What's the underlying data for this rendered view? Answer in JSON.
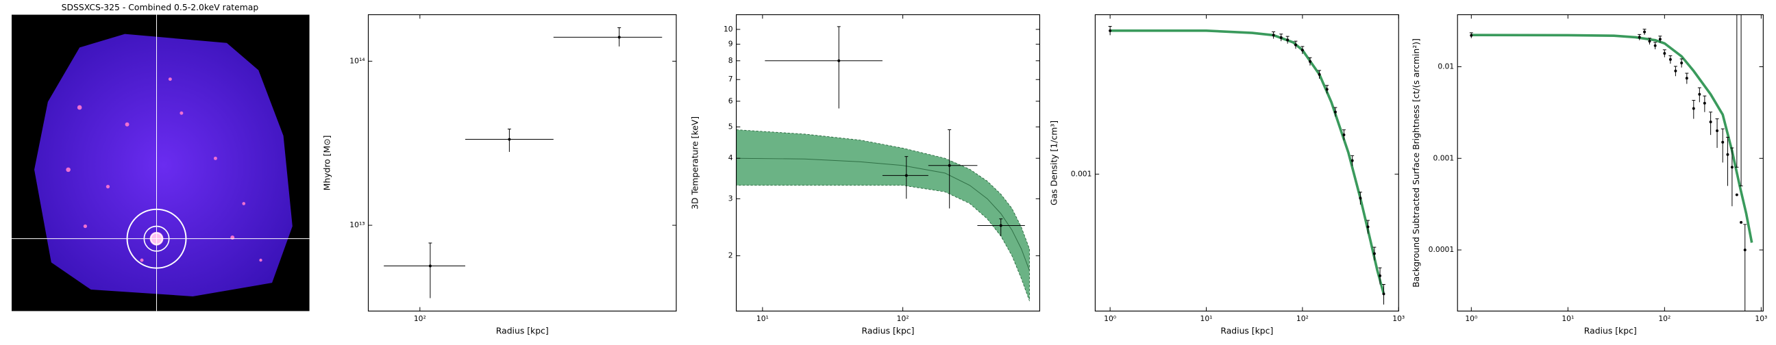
{
  "chart_data": [
    {
      "type": "image",
      "title": "SDSSXCS-325 - Combined 0.5-2.0keV ratemap"
    },
    {
      "type": "scatter",
      "xlabel": "Radius [kpc]",
      "ylabel": "Mhydro [M⊙]",
      "xscale": "log",
      "yscale": "log",
      "xlim": [
        65,
        850
      ],
      "ylim": [
        3000000000000.0,
        192000000000000.0
      ],
      "xticks": [
        {
          "value": 100,
          "label": "10²"
        }
      ],
      "yticks": [
        {
          "value": 10000000000000.0,
          "label": "10¹³"
        },
        {
          "value": 100000000000000.0,
          "label": "10¹⁴"
        }
      ],
      "points": {
        "color": "#000000",
        "x": [
          109,
          211,
          528
        ],
        "values": [
          5650000000000.0,
          33400000000000.0,
          140000000000000.0
        ],
        "x_low": [
          74,
          146,
          305
        ],
        "x_high": [
          146,
          305,
          755
        ],
        "y_low": [
          3600000000000.0,
          28000000000000.0,
          123000000000000.0
        ],
        "y_high": [
          7800000000000.0,
          38600000000000.0,
          160000000000000.0
        ]
      }
    },
    {
      "type": "scatter",
      "xlabel": "Radius [kpc]",
      "ylabel": "3D Temperature [keV]",
      "xscale": "log",
      "yscale": "log",
      "xlim": [
        6.5,
        946
      ],
      "ylim": [
        1.35,
        11.1
      ],
      "xticks": [
        {
          "value": 10,
          "label": "10¹"
        },
        {
          "value": 100,
          "label": "10²"
        }
      ],
      "yticks": [
        2,
        3,
        4,
        5,
        6,
        7,
        8,
        9,
        10
      ],
      "points": {
        "color": "#000000",
        "x": [
          35,
          106,
          215,
          500
        ],
        "values": [
          8,
          3.54,
          3.8,
          2.48
        ],
        "x_low": [
          10.4,
          71.6,
          152,
          340
        ],
        "x_high": [
          71.6,
          152,
          340,
          742
        ],
        "y_low": [
          5.7,
          3.0,
          2.8,
          2.3
        ],
        "y_high": [
          10.2,
          4.05,
          4.9,
          2.6
        ]
      },
      "model": {
        "color": "#3a9a5c",
        "x": [
          6.5,
          20,
          50,
          100,
          200,
          300,
          400,
          500,
          600,
          700,
          800
        ],
        "values": [
          4.0,
          3.98,
          3.9,
          3.8,
          3.6,
          3.3,
          3.0,
          2.7,
          2.4,
          2.1,
          1.8
        ],
        "lower": [
          3.3,
          3.3,
          3.3,
          3.3,
          3.15,
          2.9,
          2.6,
          2.3,
          2.0,
          1.7,
          1.45
        ],
        "upper": [
          4.9,
          4.75,
          4.55,
          4.3,
          4.0,
          3.7,
          3.4,
          3.1,
          2.8,
          2.45,
          2.1
        ]
      }
    },
    {
      "type": "scatter",
      "xlabel": "Radius [kpc]",
      "ylabel": "Gas Density [1/cm³]",
      "xscale": "log",
      "yscale": "log",
      "xlim": [
        0.7,
        1000
      ],
      "ylim": [
        0.000243,
        0.00519
      ],
      "xticks": [
        {
          "value": 1,
          "label": "10⁰"
        },
        {
          "value": 10,
          "label": "10¹"
        },
        {
          "value": 100,
          "label": "10²"
        },
        {
          "value": 1000,
          "label": "10³"
        }
      ],
      "yticks": [
        0.001
      ],
      "points": {
        "color": "#000000",
        "x": [
          1,
          50,
          60,
          70,
          85,
          100,
          120,
          150,
          180,
          220,
          270,
          330,
          400,
          480,
          560,
          640,
          700
        ],
        "values": [
          0.0044,
          0.0042,
          0.0041,
          0.004,
          0.0038,
          0.0036,
          0.0032,
          0.0028,
          0.0024,
          0.0019,
          0.0015,
          0.00115,
          0.00078,
          0.00058,
          0.00044,
          0.00035,
          0.00029
        ],
        "yerr": [
          0.0002,
          0.00015,
          0.00015,
          0.00015,
          0.00015,
          0.00014,
          0.00013,
          0.00012,
          0.0001,
          9e-05,
          8e-05,
          6e-05,
          5e-05,
          4e-05,
          3e-05,
          3e-05,
          3e-05
        ]
      },
      "model": {
        "color": "#3a9a5c",
        "x": [
          1,
          10,
          30,
          50,
          80,
          100,
          150,
          200,
          300,
          400,
          500,
          600,
          700
        ],
        "values": [
          0.0044,
          0.0044,
          0.0043,
          0.0042,
          0.0039,
          0.0036,
          0.0028,
          0.0021,
          0.00125,
          0.00078,
          0.00052,
          0.00037,
          0.00029
        ]
      }
    },
    {
      "type": "scatter",
      "xlabel": "Radius [kpc]",
      "ylabel": "Background Subtracted Surface Brightness [ct/(s arcmin²)]",
      "xscale": "log",
      "yscale": "log",
      "xlim": [
        0.72,
        1050
      ],
      "ylim": [
        2.15e-05,
        0.037
      ],
      "xticks": [
        {
          "value": 1,
          "label": "10⁰"
        },
        {
          "value": 10,
          "label": "10¹"
        },
        {
          "value": 100,
          "label": "10²"
        },
        {
          "value": 1000,
          "label": "10³"
        }
      ],
      "yticks": [
        0.0001,
        0.001,
        0.01
      ],
      "points": {
        "color": "#000000",
        "x": [
          1,
          55,
          62,
          70,
          80,
          90,
          100,
          115,
          130,
          150,
          170,
          200,
          230,
          260,
          300,
          350,
          400,
          450,
          500,
          560,
          620,
          680
        ],
        "values": [
          0.022,
          0.021,
          0.024,
          0.019,
          0.017,
          0.02,
          0.014,
          0.012,
          0.009,
          0.011,
          0.0075,
          0.0035,
          0.005,
          0.004,
          0.0025,
          0.002,
          0.0015,
          0.0011,
          0.0008,
          0.0004,
          0.0002,
          0.0001
        ],
        "yerr": [
          0.0015,
          0.0015,
          0.0017,
          0.0015,
          0.0015,
          0.0016,
          0.0013,
          0.0012,
          0.0011,
          0.0012,
          0.001,
          0.0008,
          0.0009,
          0.0008,
          0.0007,
          0.0007,
          0.0006,
          0.0006,
          0.0005,
          0.0004,
          0.0003,
          9e-05
        ]
      },
      "model": {
        "color": "#3a9a5c",
        "x": [
          1,
          10,
          30,
          50,
          80,
          100,
          150,
          200,
          300,
          400,
          500,
          600,
          700,
          800
        ],
        "values": [
          0.0222,
          0.0221,
          0.0218,
          0.021,
          0.0195,
          0.018,
          0.013,
          0.009,
          0.005,
          0.003,
          0.0012,
          0.0005,
          0.00025,
          0.00012
        ]
      }
    }
  ]
}
